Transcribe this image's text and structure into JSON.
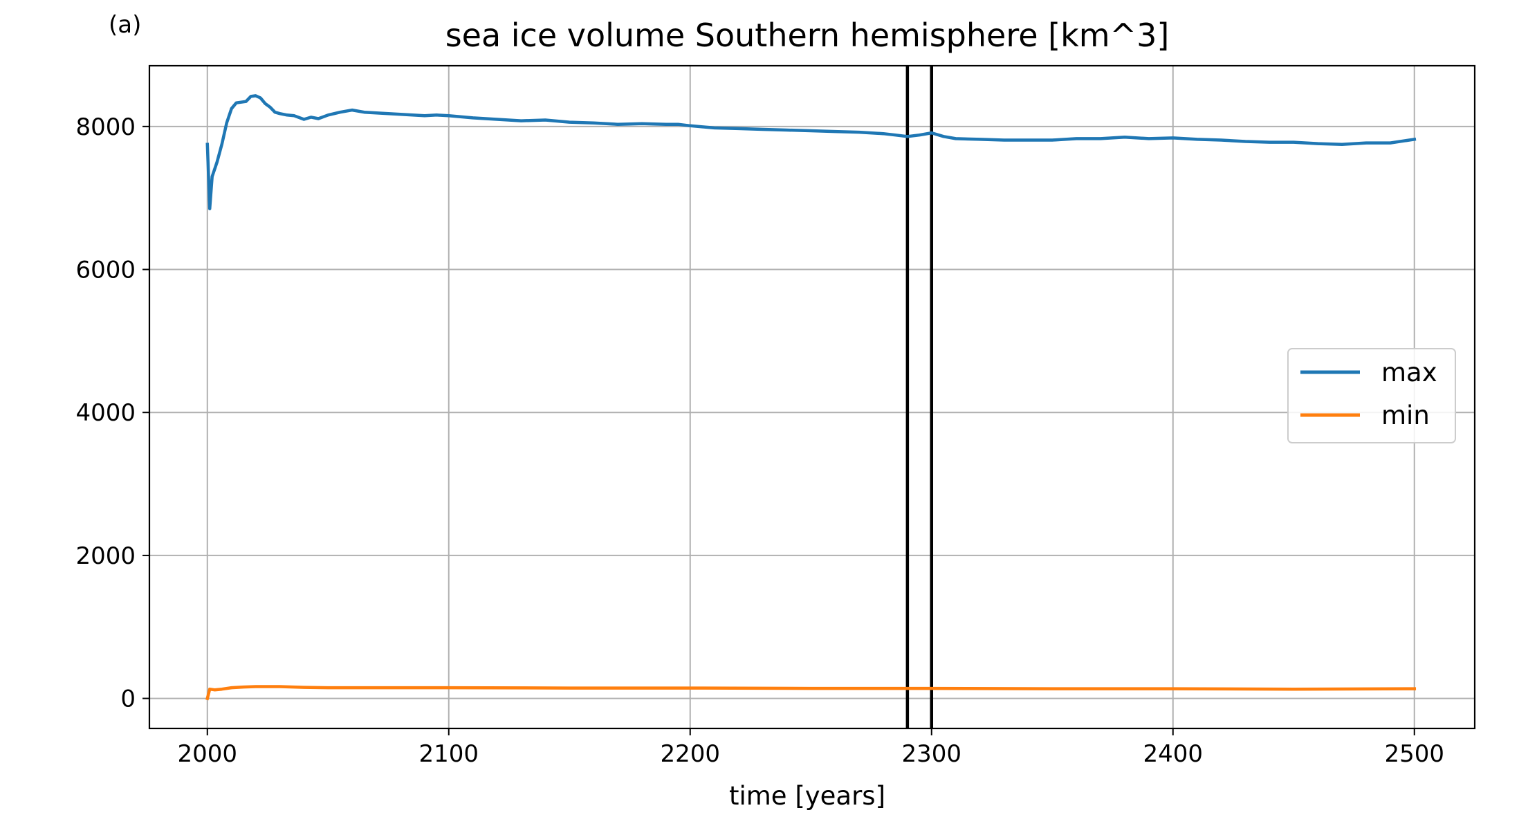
{
  "panel_label": "(a)",
  "chart_data": {
    "type": "line",
    "title": "sea ice volume Southern hemisphere [km^3]",
    "xlabel": "time [years]",
    "ylabel": "",
    "xlim": [
      1976,
      2525
    ],
    "ylim": [
      -420,
      8850
    ],
    "xticks": [
      2000,
      2100,
      2200,
      2300,
      2400,
      2500
    ],
    "yticks": [
      0,
      2000,
      4000,
      6000,
      8000
    ],
    "grid": true,
    "legend": {
      "placement": "center-right"
    },
    "vlines": [
      2290,
      2300
    ],
    "vline_color": "#000000",
    "series": [
      {
        "name": "max",
        "color": "#1f77b4",
        "x": [
          2000,
          2001,
          2002,
          2004,
          2006,
          2008,
          2010,
          2012,
          2014,
          2016,
          2018,
          2020,
          2022,
          2024,
          2026,
          2028,
          2030,
          2033,
          2036,
          2040,
          2043,
          2046,
          2050,
          2055,
          2060,
          2065,
          2070,
          2075,
          2080,
          2085,
          2090,
          2095,
          2100,
          2110,
          2120,
          2130,
          2140,
          2150,
          2160,
          2170,
          2180,
          2190,
          2195,
          2200,
          2210,
          2220,
          2230,
          2240,
          2250,
          2260,
          2270,
          2280,
          2285,
          2290,
          2295,
          2300,
          2305,
          2310,
          2320,
          2330,
          2340,
          2350,
          2360,
          2370,
          2380,
          2390,
          2400,
          2410,
          2420,
          2430,
          2440,
          2450,
          2460,
          2470,
          2480,
          2490,
          2500
        ],
        "values": [
          7750,
          6850,
          7300,
          7500,
          7750,
          8050,
          8250,
          8330,
          8340,
          8350,
          8420,
          8430,
          8400,
          8320,
          8270,
          8200,
          8180,
          8160,
          8150,
          8100,
          8130,
          8110,
          8160,
          8200,
          8230,
          8200,
          8190,
          8180,
          8170,
          8160,
          8150,
          8160,
          8150,
          8120,
          8100,
          8080,
          8090,
          8060,
          8050,
          8030,
          8040,
          8030,
          8030,
          8010,
          7980,
          7970,
          7960,
          7950,
          7940,
          7930,
          7920,
          7900,
          7880,
          7860,
          7880,
          7910,
          7860,
          7830,
          7820,
          7810,
          7810,
          7810,
          7830,
          7830,
          7850,
          7830,
          7840,
          7820,
          7810,
          7790,
          7780,
          7780,
          7760,
          7750,
          7770,
          7770,
          7820
        ]
      },
      {
        "name": "min",
        "color": "#ff7f0e",
        "x": [
          2000,
          2001,
          2003,
          2006,
          2010,
          2015,
          2020,
          2030,
          2040,
          2050,
          2100,
          2150,
          2200,
          2250,
          2300,
          2350,
          2400,
          2450,
          2500
        ],
        "values": [
          0,
          130,
          120,
          130,
          150,
          160,
          165,
          165,
          155,
          150,
          150,
          145,
          145,
          140,
          140,
          135,
          135,
          130,
          135
        ]
      }
    ]
  }
}
